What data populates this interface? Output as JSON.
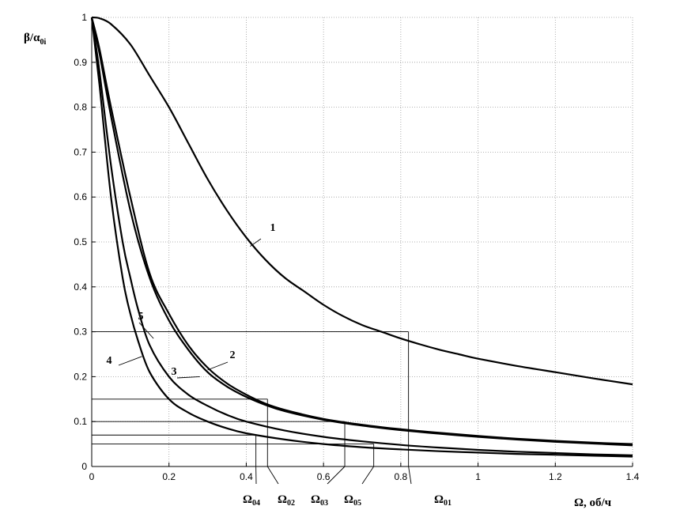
{
  "chart_data": {
    "type": "line",
    "title": "",
    "xlabel": "Ω, об/ч",
    "ylabel_main": "β/α",
    "ylabel_sub": "0i",
    "xlim": [
      0,
      1.4
    ],
    "ylim": [
      0,
      1
    ],
    "grid": true,
    "x_ticks": [
      0,
      0.2,
      0.4,
      0.6,
      0.8,
      1,
      1.2,
      1.4
    ],
    "x_tick_labels": [
      "0",
      "0.2",
      "0.4",
      "0.6",
      "0.8",
      "1",
      "1.2",
      "1.4"
    ],
    "y_ticks": [
      0,
      0.1,
      0.2,
      0.3,
      0.4,
      0.5,
      0.6,
      0.7,
      0.8,
      0.9,
      1
    ],
    "y_tick_labels": [
      "0",
      "0.1",
      "0.2",
      "0.3",
      "0.4",
      "0.5",
      "0.6",
      "0.7",
      "0.8",
      "0.9",
      "1"
    ],
    "series": [
      {
        "label": "1",
        "x": [
          0,
          0.02,
          0.05,
          0.1,
          0.15,
          0.2,
          0.25,
          0.3,
          0.35,
          0.4,
          0.45,
          0.5,
          0.55,
          0.6,
          0.65,
          0.7,
          0.75,
          0.8,
          0.85,
          0.9,
          0.95,
          1.0,
          1.1,
          1.2,
          1.3,
          1.4
        ],
        "y": [
          1.0,
          0.998,
          0.985,
          0.94,
          0.87,
          0.8,
          0.72,
          0.64,
          0.57,
          0.51,
          0.46,
          0.42,
          0.39,
          0.36,
          0.335,
          0.315,
          0.3,
          0.285,
          0.272,
          0.26,
          0.25,
          0.24,
          0.224,
          0.21,
          0.196,
          0.183
        ]
      },
      {
        "label": "2",
        "x": [
          0,
          0.02,
          0.05,
          0.1,
          0.15,
          0.2,
          0.25,
          0.3,
          0.35,
          0.4,
          0.45,
          0.5,
          0.6,
          0.7,
          0.8,
          0.9,
          1.0,
          1.1,
          1.2,
          1.3,
          1.4
        ],
        "y": [
          1.0,
          0.93,
          0.8,
          0.6,
          0.43,
          0.34,
          0.27,
          0.22,
          0.185,
          0.16,
          0.14,
          0.126,
          0.106,
          0.093,
          0.083,
          0.075,
          0.068,
          0.062,
          0.057,
          0.053,
          0.05
        ]
      },
      {
        "label": "3",
        "x": [
          0,
          0.02,
          0.05,
          0.1,
          0.15,
          0.2,
          0.25,
          0.3,
          0.35,
          0.4,
          0.45,
          0.5,
          0.6,
          0.7,
          0.8,
          0.9,
          1.0,
          1.1,
          1.2,
          1.3,
          1.4
        ],
        "y": [
          1.0,
          0.92,
          0.78,
          0.57,
          0.42,
          0.325,
          0.26,
          0.21,
          0.178,
          0.155,
          0.137,
          0.123,
          0.104,
          0.091,
          0.081,
          0.073,
          0.066,
          0.06,
          0.055,
          0.051,
          0.047
        ]
      },
      {
        "label": "4",
        "x": [
          0,
          0.02,
          0.05,
          0.08,
          0.1,
          0.12,
          0.15,
          0.2,
          0.25,
          0.3,
          0.35,
          0.4,
          0.5,
          0.6,
          0.7,
          0.8,
          0.9,
          1.0,
          1.1,
          1.2,
          1.3,
          1.4
        ],
        "y": [
          1.0,
          0.85,
          0.6,
          0.42,
          0.34,
          0.28,
          0.21,
          0.15,
          0.12,
          0.1,
          0.085,
          0.074,
          0.06,
          0.05,
          0.043,
          0.038,
          0.034,
          0.031,
          0.028,
          0.026,
          0.024,
          0.022
        ]
      },
      {
        "label": "5",
        "x": [
          0,
          0.02,
          0.05,
          0.08,
          0.1,
          0.12,
          0.15,
          0.2,
          0.25,
          0.3,
          0.35,
          0.4,
          0.5,
          0.6,
          0.7,
          0.8,
          0.9,
          1.0,
          1.1,
          1.2,
          1.3,
          1.4
        ],
        "y": [
          1.0,
          0.88,
          0.67,
          0.5,
          0.42,
          0.35,
          0.27,
          0.2,
          0.16,
          0.135,
          0.115,
          0.1,
          0.08,
          0.066,
          0.056,
          0.048,
          0.042,
          0.037,
          0.033,
          0.03,
          0.027,
          0.025
        ]
      }
    ],
    "reference_lines": [
      {
        "label_main": "Ω",
        "label_sub": "01",
        "level": 0.3,
        "omega": 0.82
      },
      {
        "label_main": "Ω",
        "label_sub": "02",
        "level": 0.15,
        "omega": 0.455
      },
      {
        "label_main": "Ω",
        "label_sub": "03",
        "level": 0.1,
        "omega": 0.655
      },
      {
        "label_main": "Ω",
        "label_sub": "04",
        "level": 0.07,
        "omega": 0.425
      },
      {
        "label_main": "Ω",
        "label_sub": "05",
        "level": 0.05,
        "omega": 0.73
      }
    ]
  }
}
